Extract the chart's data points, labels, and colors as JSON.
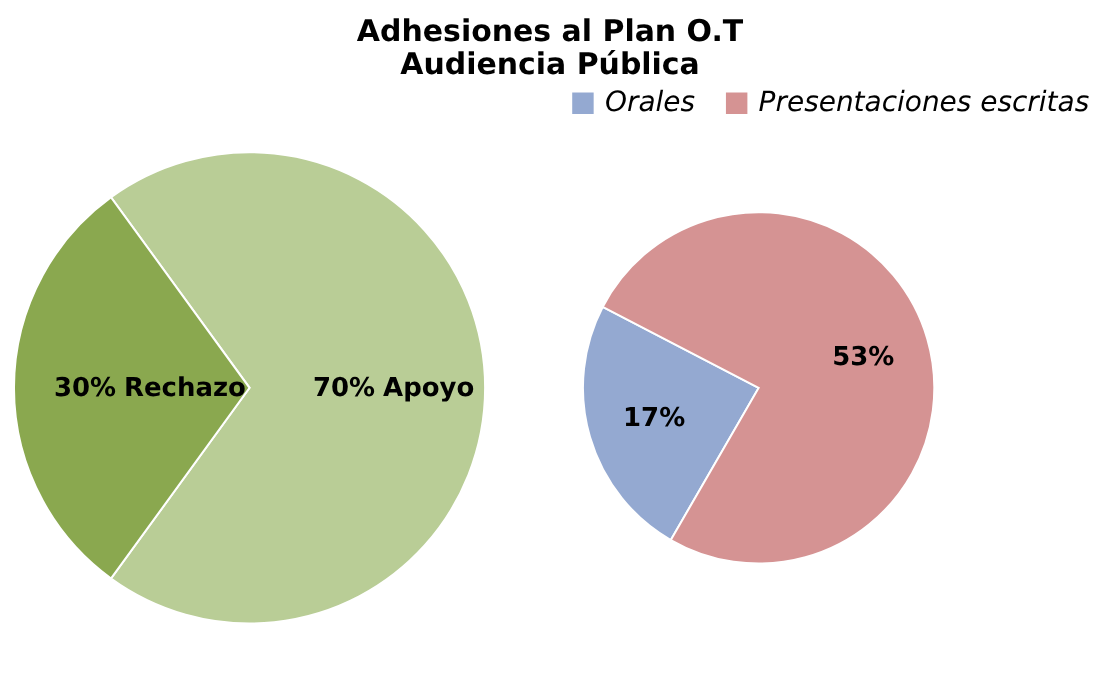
{
  "chart_data": [
    {
      "type": "pie",
      "title": "Adhesiones  al Plan O.T\nAudiencia Pública",
      "categories": [
        "Apoyo",
        "Rechazo"
      ],
      "values": [
        70,
        30
      ],
      "colors": [
        "#b9cd96",
        "#8aa84f"
      ],
      "value_labels": [
        "70%",
        "30%"
      ],
      "legend": false
    },
    {
      "type": "pie",
      "categories": [
        "Orales",
        "Presentaciones escritas"
      ],
      "values": [
        17,
        53
      ],
      "colors": [
        "#94a9d1",
        "#d59393"
      ],
      "value_labels": [
        "17%",
        "53%"
      ],
      "legend": "top"
    }
  ]
}
